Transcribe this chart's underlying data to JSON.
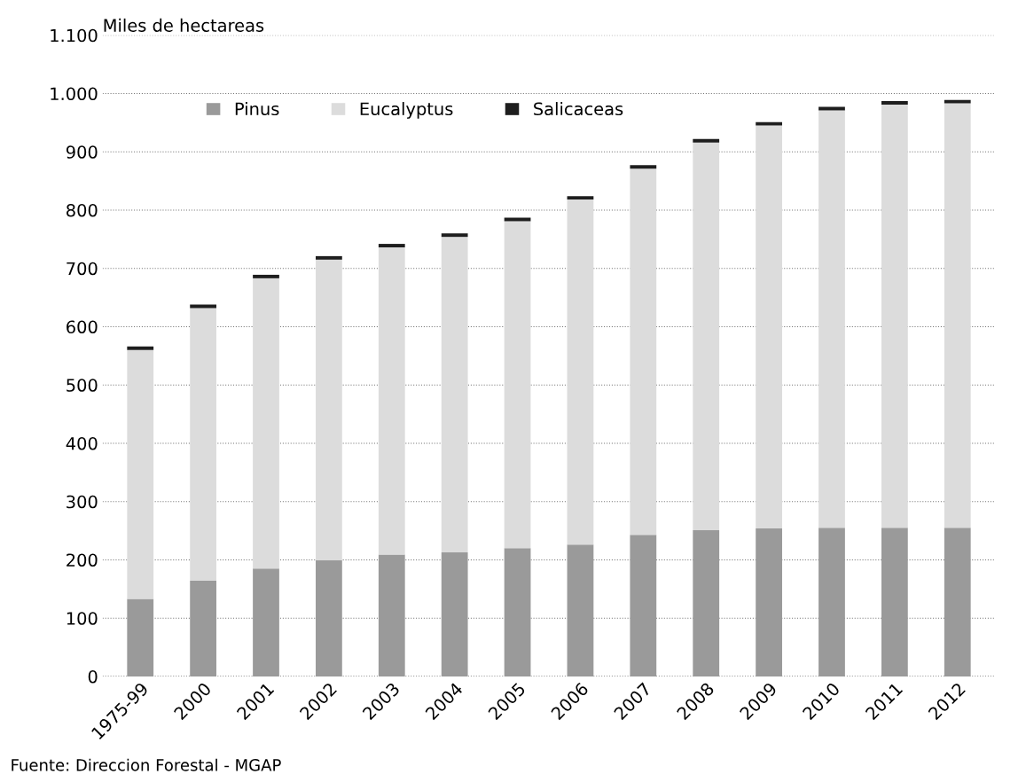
{
  "chart_data": {
    "type": "bar",
    "stacked": true,
    "ylabel": "Miles de hectareas",
    "categories": [
      "1975-99",
      "2000",
      "2001",
      "2002",
      "2003",
      "2004",
      "2005",
      "2006",
      "2007",
      "2008",
      "2009",
      "2010",
      "2011",
      "2012"
    ],
    "series": [
      {
        "name": "Pinus",
        "color": "#9a9a9a",
        "values": [
          133,
          164,
          185,
          199,
          209,
          213,
          220,
          226,
          243,
          251,
          254,
          255,
          255,
          255
        ]
      },
      {
        "name": "Eucalyptus",
        "color": "#dcdcdc",
        "values": [
          427,
          468,
          498,
          516,
          527,
          541,
          561,
          592,
          628,
          665,
          691,
          716,
          726,
          728
        ]
      },
      {
        "name": "Salicaceas",
        "color": "#1e1e1e",
        "values": [
          6,
          6,
          6,
          6,
          6,
          6,
          6,
          6,
          6,
          6,
          6,
          6,
          6,
          6
        ]
      }
    ],
    "ylim": [
      0,
      1100
    ],
    "yticks": [
      0,
      100,
      200,
      300,
      400,
      500,
      600,
      700,
      800,
      900,
      {
        "value": 1000,
        "label": "1.000"
      },
      {
        "value": 1100,
        "label": "1.100"
      }
    ],
    "grid": "y",
    "legend": "top",
    "annotations": [
      "Fuente: Direccion Forestal - MGAP"
    ]
  }
}
